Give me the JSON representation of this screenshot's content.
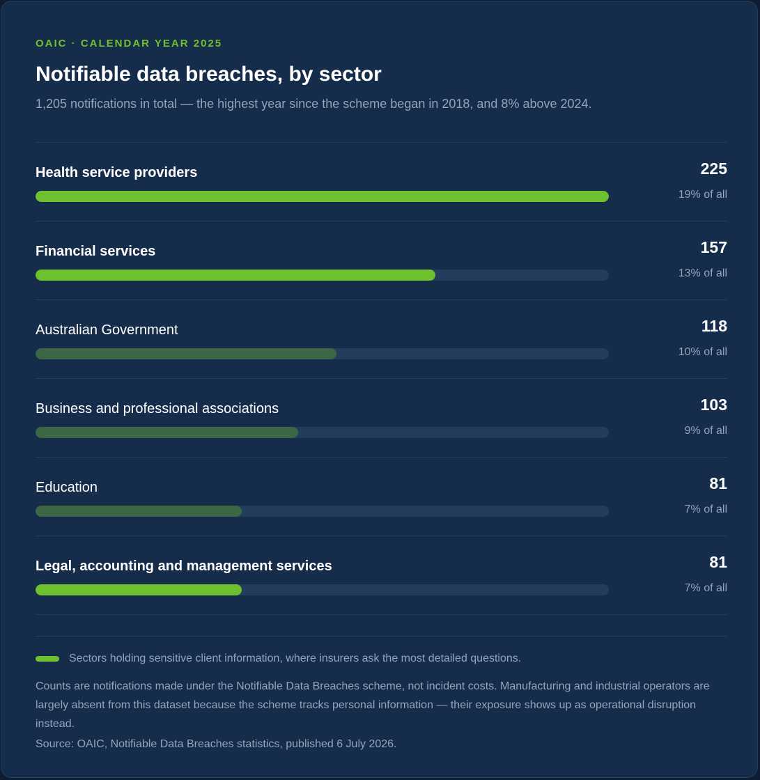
{
  "header": {
    "eyebrow": "OAIC · CALENDAR YEAR 2025",
    "title": "Notifiable data breaches, by sector",
    "subtitle": "1,205 notifications in total — the highest year since the scheme began in 2018, and 8% above 2024."
  },
  "chart_data": {
    "type": "bar",
    "orientation": "horizontal",
    "title": "Notifiable data breaches, by sector",
    "xlim": [
      0,
      225
    ],
    "grid": false,
    "categories": [
      "Health service providers",
      "Financial services",
      "Australian Government",
      "Business and professional associations",
      "Education",
      "Legal, accounting and management services"
    ],
    "values": [
      225,
      157,
      118,
      103,
      81,
      81
    ],
    "percent_labels": [
      "19% of all",
      "13% of all",
      "10% of all",
      "9% of all",
      "7% of all",
      "7% of all"
    ],
    "highlighted": [
      true,
      true,
      false,
      false,
      false,
      true
    ]
  },
  "colors": {
    "highlight": "#6ec12e",
    "muted": "#3c6644",
    "track": "#233d5c",
    "background": "#152c4b"
  },
  "footer": {
    "legend": "Sectors holding sensitive client information, where insurers ask the most detailed questions.",
    "note": "Counts are notifications made under the Notifiable Data Breaches scheme, not incident costs. Manufacturing and industrial operators are largely absent from this dataset because the scheme tracks personal information — their exposure shows up as operational disruption instead.",
    "source": "Source: OAIC, Notifiable Data Breaches statistics, published 6 July 2026."
  }
}
